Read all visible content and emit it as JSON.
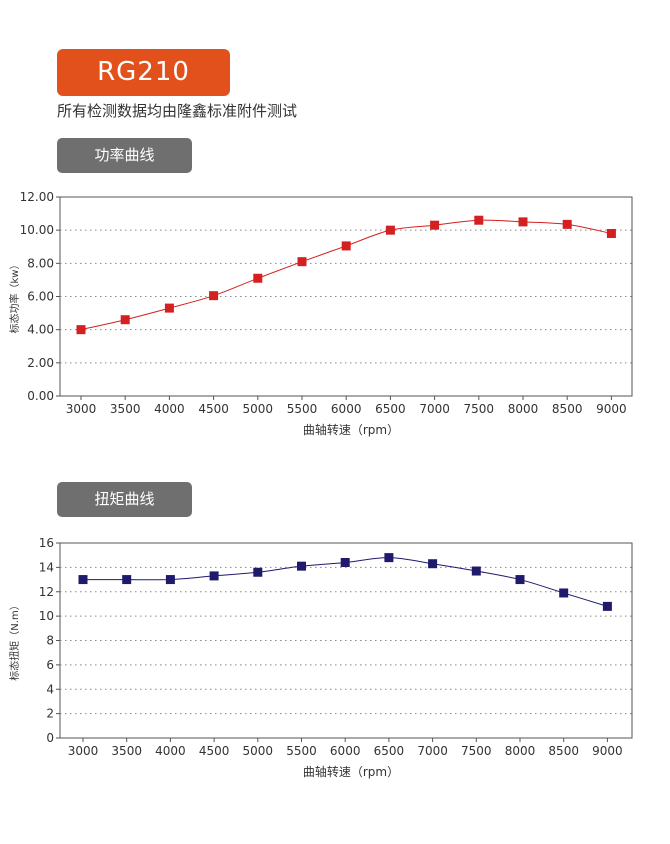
{
  "header": {
    "model": "RG210",
    "subtitle": "所有检测数据均由隆鑫标准附件测试"
  },
  "sections": {
    "power_tab": "功率曲线",
    "torque_tab": "扭矩曲线"
  },
  "colors": {
    "accent": "#e2501c",
    "tab_bg": "#6f6f6f",
    "power_series": "#d42020",
    "torque_series": "#1f1a6b"
  },
  "chart_data": [
    {
      "type": "line",
      "xlabel": "曲轴转速（rpm）",
      "ylabel": "标态功率（kw）",
      "x": [
        3000,
        3500,
        4000,
        4500,
        5000,
        5500,
        6000,
        6500,
        7000,
        7500,
        8000,
        8500,
        9000
      ],
      "x_tick_labels": [
        "3000",
        "3500",
        "4000",
        "4500",
        "5000",
        "5500",
        "6000",
        "6500",
        "7000",
        "7500",
        "8000",
        "8500",
        "9000"
      ],
      "y_ticks": [
        "0.00",
        "2.00",
        "4.00",
        "6.00",
        "8.00",
        "10.00",
        "12.00"
      ],
      "ylim": [
        0,
        12
      ],
      "grid": true,
      "series": [
        {
          "values": [
            4.0,
            4.6,
            5.3,
            6.05,
            7.1,
            8.1,
            9.05,
            10.0,
            10.3,
            10.6,
            10.5,
            10.35,
            9.8
          ]
        }
      ]
    },
    {
      "type": "line",
      "xlabel": "曲轴转速（rpm）",
      "ylabel": "标态扭矩（N.m）",
      "x": [
        3000,
        3500,
        4000,
        4500,
        5000,
        5500,
        6000,
        6500,
        7000,
        7500,
        8000,
        8500,
        9000
      ],
      "x_tick_labels": [
        "3000",
        "3500",
        "4000",
        "4500",
        "5000",
        "5500",
        "6000",
        "6500",
        "7000",
        "7500",
        "8000",
        "8500",
        "9000"
      ],
      "y_ticks": [
        "0",
        "2",
        "4",
        "6",
        "8",
        "10",
        "12",
        "14",
        "16"
      ],
      "ylim": [
        0,
        16
      ],
      "grid": true,
      "series": [
        {
          "values": [
            13.0,
            13.0,
            13.0,
            13.3,
            13.6,
            14.1,
            14.4,
            14.8,
            14.3,
            13.7,
            13.0,
            11.9,
            10.8
          ]
        }
      ]
    }
  ]
}
